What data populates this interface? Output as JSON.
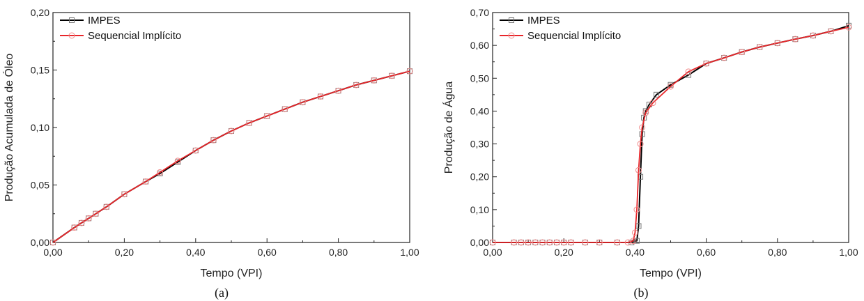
{
  "chart_data": [
    {
      "type": "line",
      "caption": "(a)",
      "xlabel": "Tempo (VPI)",
      "ylabel": "Produção Acumulada de Óleo",
      "xlim": [
        0,
        1
      ],
      "ylim": [
        0,
        0.2
      ],
      "xticks": [
        "0,00",
        "0,20",
        "0,40",
        "0,60",
        "0,80",
        "1,00"
      ],
      "yticks": [
        "0,00",
        "0,05",
        "0,10",
        "0,15",
        "0,20"
      ],
      "legend": "top-left",
      "series": [
        {
          "name": "IMPES",
          "color": "#000000",
          "marker": "square",
          "x": [
            0,
            0.06,
            0.08,
            0.1,
            0.12,
            0.15,
            0.2,
            0.26,
            0.3,
            0.35,
            0.4,
            0.45,
            0.5,
            0.55,
            0.6,
            0.65,
            0.7,
            0.75,
            0.8,
            0.85,
            0.9,
            0.95,
            1.0
          ],
          "y": [
            0,
            0.013,
            0.017,
            0.021,
            0.025,
            0.031,
            0.042,
            0.053,
            0.06,
            0.07,
            0.08,
            0.089,
            0.097,
            0.104,
            0.11,
            0.116,
            0.122,
            0.127,
            0.132,
            0.137,
            0.141,
            0.145,
            0.149
          ]
        },
        {
          "name": "Sequencial Implícito",
          "color": "#e8262a",
          "marker": "circle",
          "x": [
            0,
            0.06,
            0.08,
            0.1,
            0.12,
            0.15,
            0.2,
            0.26,
            0.3,
            0.35,
            0.4,
            0.45,
            0.5,
            0.55,
            0.6,
            0.65,
            0.7,
            0.75,
            0.8,
            0.85,
            0.9,
            0.95,
            1.0
          ],
          "y": [
            0,
            0.013,
            0.017,
            0.021,
            0.025,
            0.031,
            0.042,
            0.053,
            0.061,
            0.071,
            0.08,
            0.089,
            0.097,
            0.104,
            0.11,
            0.116,
            0.122,
            0.127,
            0.132,
            0.137,
            0.141,
            0.145,
            0.149
          ]
        }
      ]
    },
    {
      "type": "line",
      "caption": "(b)",
      "xlabel": "Tempo (VPI)",
      "ylabel": "Produção de  Água",
      "xlim": [
        0,
        1
      ],
      "ylim": [
        0,
        0.7
      ],
      "xticks": [
        "0,00",
        "0,20",
        "0,40",
        "0,60",
        "0,80",
        "1,00"
      ],
      "yticks": [
        "0,00",
        "0,10",
        "0,20",
        "0,30",
        "0,40",
        "0,50",
        "0,60",
        "0,70"
      ],
      "legend": "top-left",
      "series": [
        {
          "name": "IMPES",
          "color": "#000000",
          "marker": "square",
          "x": [
            0,
            0.06,
            0.08,
            0.1,
            0.12,
            0.14,
            0.16,
            0.18,
            0.2,
            0.22,
            0.26,
            0.3,
            0.35,
            0.39,
            0.405,
            0.41,
            0.415,
            0.42,
            0.425,
            0.43,
            0.44,
            0.46,
            0.5,
            0.55,
            0.6,
            0.65,
            0.7,
            0.75,
            0.8,
            0.85,
            0.9,
            0.95,
            1.0
          ],
          "y": [
            0,
            0,
            0,
            0,
            0,
            0,
            0,
            0,
            0,
            0,
            0,
            0,
            0,
            0,
            0.005,
            0.05,
            0.2,
            0.33,
            0.38,
            0.4,
            0.42,
            0.45,
            0.48,
            0.51,
            0.545,
            0.562,
            0.58,
            0.595,
            0.607,
            0.619,
            0.63,
            0.643,
            0.66
          ]
        },
        {
          "name": "Sequencial Implícito",
          "color": "#e8262a",
          "marker": "circle",
          "x": [
            0,
            0.06,
            0.08,
            0.1,
            0.12,
            0.14,
            0.16,
            0.18,
            0.2,
            0.22,
            0.26,
            0.3,
            0.35,
            0.38,
            0.395,
            0.4,
            0.405,
            0.41,
            0.415,
            0.42,
            0.43,
            0.45,
            0.5,
            0.55,
            0.6,
            0.65,
            0.7,
            0.75,
            0.8,
            0.85,
            0.9,
            0.95,
            1.0
          ],
          "y": [
            0,
            0,
            0,
            0,
            0,
            0,
            0,
            0,
            0,
            0,
            0,
            0,
            0,
            0,
            0.005,
            0.03,
            0.1,
            0.22,
            0.3,
            0.35,
            0.395,
            0.425,
            0.475,
            0.52,
            0.545,
            0.562,
            0.58,
            0.595,
            0.607,
            0.619,
            0.63,
            0.643,
            0.655
          ]
        }
      ]
    }
  ]
}
